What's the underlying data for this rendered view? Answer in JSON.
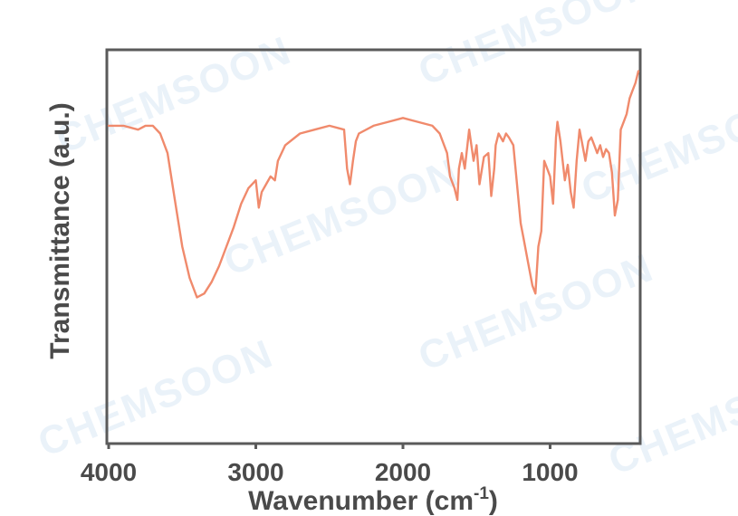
{
  "watermark": "CHEMSOON",
  "chart_data": {
    "type": "line",
    "title": "",
    "xlabel": "Wavenumber (cm",
    "xlabel_sup": "-1",
    "xlabel_close": ")",
    "ylabel": "Transmittance (a.u.)",
    "xlim": [
      4000,
      400
    ],
    "x_reversed": true,
    "ylim": [
      0,
      100
    ],
    "y_ticks_shown": false,
    "grid": false,
    "legend": "none",
    "xticks": [
      {
        "value": 4000,
        "label": "4000"
      },
      {
        "value": 3000,
        "label": "3000"
      },
      {
        "value": 2000,
        "label": "2000"
      },
      {
        "value": 1000,
        "label": "1000"
      }
    ],
    "series": [
      {
        "color": "#f08a6c",
        "x": [
          4000,
          3900,
          3800,
          3750,
          3700,
          3650,
          3600,
          3550,
          3500,
          3450,
          3400,
          3350,
          3300,
          3250,
          3200,
          3150,
          3100,
          3050,
          3000,
          2980,
          2960,
          2930,
          2900,
          2870,
          2850,
          2800,
          2700,
          2600,
          2500,
          2400,
          2380,
          2360,
          2340,
          2320,
          2300,
          2200,
          2100,
          2000,
          1900,
          1800,
          1750,
          1700,
          1680,
          1650,
          1630,
          1620,
          1600,
          1580,
          1550,
          1520,
          1500,
          1480,
          1450,
          1420,
          1400,
          1380,
          1370,
          1350,
          1320,
          1300,
          1280,
          1250,
          1200,
          1180,
          1150,
          1120,
          1100,
          1080,
          1060,
          1040,
          1020,
          1000,
          980,
          960,
          950,
          930,
          900,
          880,
          860,
          840,
          820,
          800,
          780,
          760,
          740,
          720,
          700,
          680,
          660,
          640,
          620,
          600,
          580,
          560,
          540,
          520,
          500,
          480,
          460,
          440,
          420,
          400
        ],
        "y": [
          81,
          81,
          80,
          81,
          81,
          79,
          74,
          62,
          50,
          42,
          37,
          38,
          41,
          45,
          50,
          55,
          61,
          65,
          67,
          60,
          64,
          66,
          68,
          67,
          72,
          76,
          79,
          80,
          81,
          80,
          70,
          66,
          72,
          77,
          79,
          81,
          82,
          83,
          82,
          81,
          79,
          74,
          68,
          65,
          62,
          70,
          74,
          70,
          80,
          72,
          76,
          66,
          73,
          74,
          63,
          70,
          76,
          79,
          77,
          79,
          78,
          76,
          56,
          52,
          46,
          40,
          38,
          50,
          54,
          72,
          70,
          68,
          61,
          78,
          82,
          77,
          67,
          71,
          64,
          60,
          72,
          80,
          76,
          72,
          77,
          78,
          76,
          74,
          76,
          73,
          75,
          74,
          69,
          58,
          62,
          80,
          82,
          84,
          88,
          90,
          92,
          95
        ]
      }
    ]
  }
}
